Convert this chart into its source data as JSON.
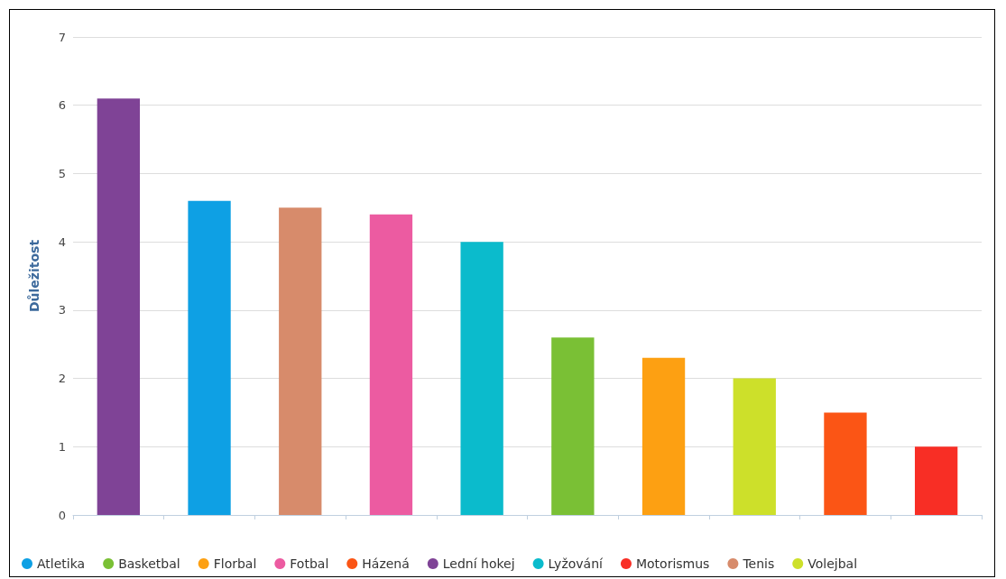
{
  "chart_data": {
    "type": "bar",
    "ylabel": "Důležitost",
    "categories": [
      null,
      null,
      null,
      null,
      null,
      null,
      null,
      null,
      null,
      null
    ],
    "series": [
      {
        "name": "Atletika",
        "color": "#0ea0e4",
        "values": [
          null,
          4.6,
          null,
          null,
          null,
          null,
          null,
          null,
          null,
          null
        ]
      },
      {
        "name": "Basketbal",
        "color": "#7ac035",
        "values": [
          null,
          null,
          null,
          null,
          null,
          2.6,
          null,
          null,
          null,
          null
        ]
      },
      {
        "name": "Florbal",
        "color": "#fda012",
        "values": [
          null,
          null,
          null,
          null,
          null,
          null,
          2.3,
          null,
          null,
          null
        ]
      },
      {
        "name": "Fotbal",
        "color": "#ec5ba1",
        "values": [
          null,
          null,
          null,
          4.4,
          null,
          null,
          null,
          null,
          null,
          null
        ]
      },
      {
        "name": "Házená",
        "color": "#fb5515",
        "values": [
          null,
          null,
          null,
          null,
          null,
          null,
          null,
          null,
          1.5,
          null
        ]
      },
      {
        "name": "Lední hokej",
        "color": "#7f4396",
        "values": [
          6.1,
          null,
          null,
          null,
          null,
          null,
          null,
          null,
          null,
          null
        ]
      },
      {
        "name": "Lyžování",
        "color": "#0bbbcc",
        "values": [
          null,
          null,
          null,
          null,
          4.0,
          null,
          null,
          null,
          null,
          null
        ]
      },
      {
        "name": "Motorismus",
        "color": "#f82e25",
        "values": [
          null,
          null,
          null,
          null,
          null,
          null,
          null,
          null,
          null,
          1.0
        ]
      },
      {
        "name": "Tenis",
        "color": "#d78b6b",
        "values": [
          null,
          null,
          4.5,
          null,
          null,
          null,
          null,
          null,
          null,
          null
        ]
      },
      {
        "name": "Volejbal",
        "color": "#cde02a",
        "values": [
          null,
          null,
          null,
          null,
          null,
          null,
          null,
          2.0,
          null,
          null
        ]
      }
    ],
    "ylim": [
      0,
      7
    ],
    "yticks": [
      0,
      1,
      2,
      3,
      4,
      5,
      6,
      7
    ],
    "grid": "y",
    "legend": "bottom left",
    "tick_labels": "y"
  }
}
